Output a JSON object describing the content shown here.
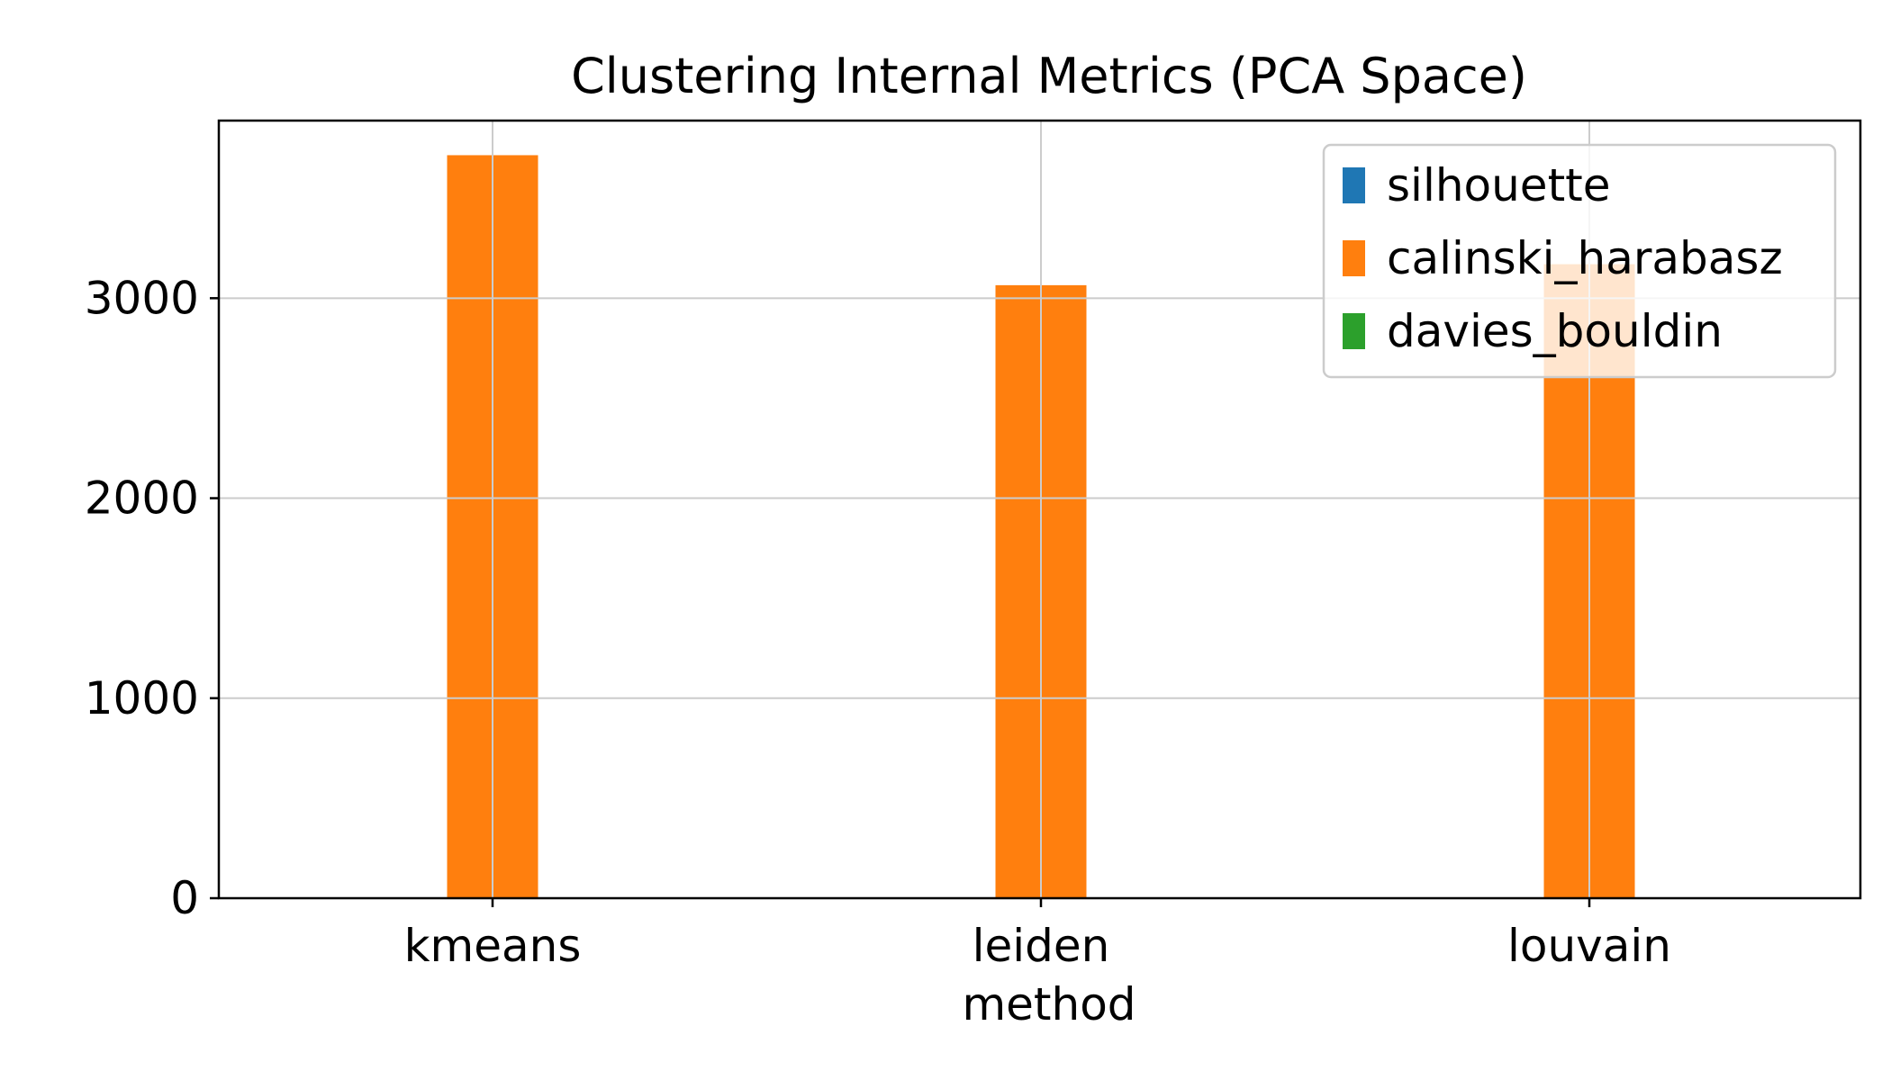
{
  "chart_data": {
    "type": "bar",
    "title": "Clustering Internal Metrics (PCA Space)",
    "xlabel": "method",
    "ylabel": "",
    "categories": [
      "kmeans",
      "leiden",
      "louvain"
    ],
    "series": [
      {
        "name": "silhouette",
        "values": [
          0.4,
          0.38,
          0.37
        ],
        "color": "#1f77b4"
      },
      {
        "name": "calinski_harabasz",
        "values": [
          3715,
          3065,
          3170
        ],
        "color": "#ff7f0e"
      },
      {
        "name": "davies_bouldin",
        "values": [
          0.8,
          0.85,
          0.83
        ],
        "color": "#2ca02c"
      }
    ],
    "ylim": [
      0,
      3888
    ],
    "yticks": [
      0,
      1000,
      2000,
      3000
    ],
    "ytick_labels": [
      "0",
      "1000",
      "2000",
      "3000"
    ],
    "grid": true,
    "legend_position": "top-right"
  }
}
